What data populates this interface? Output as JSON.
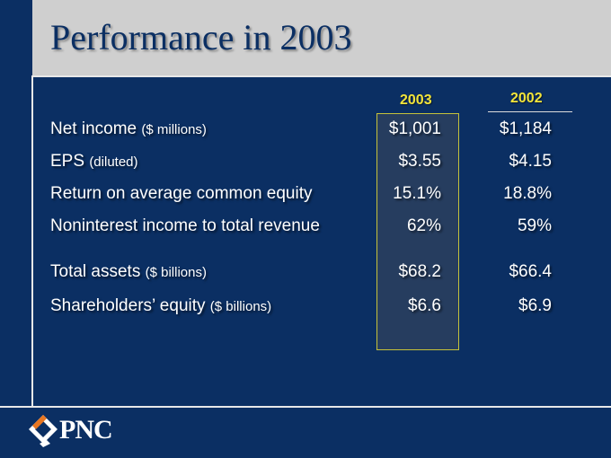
{
  "slide": {
    "title": "Performance in 2003"
  },
  "table": {
    "columns": [
      "2003",
      "2002"
    ],
    "rows": [
      {
        "label": "Net income",
        "unit": "($ millions)",
        "v2003": "$1,001",
        "v2002": "$1,184"
      },
      {
        "label": "EPS",
        "unit": "(diluted)",
        "v2003": "$3.55",
        "v2002": "$4.15"
      },
      {
        "label": "Return on average common equity",
        "unit": "",
        "v2003": "15.1%",
        "v2002": "18.8%"
      },
      {
        "label": "Noninterest income to total revenue",
        "unit": "",
        "v2003": "62%",
        "v2002": "59%"
      },
      {
        "label": "Total assets",
        "unit": "($ billions)",
        "v2003": "$68.2",
        "v2002": "$66.4"
      },
      {
        "label": "Shareholders’ equity",
        "unit": "($ billions)",
        "v2003": "$6.6",
        "v2002": "$6.9"
      }
    ]
  },
  "logo": {
    "text": "PNC",
    "icon": "pnc-logo-icon"
  },
  "colors": {
    "background": "#0b2f63",
    "title_bar": "#cfcfcf",
    "accent_yellow": "#f2e43a"
  }
}
